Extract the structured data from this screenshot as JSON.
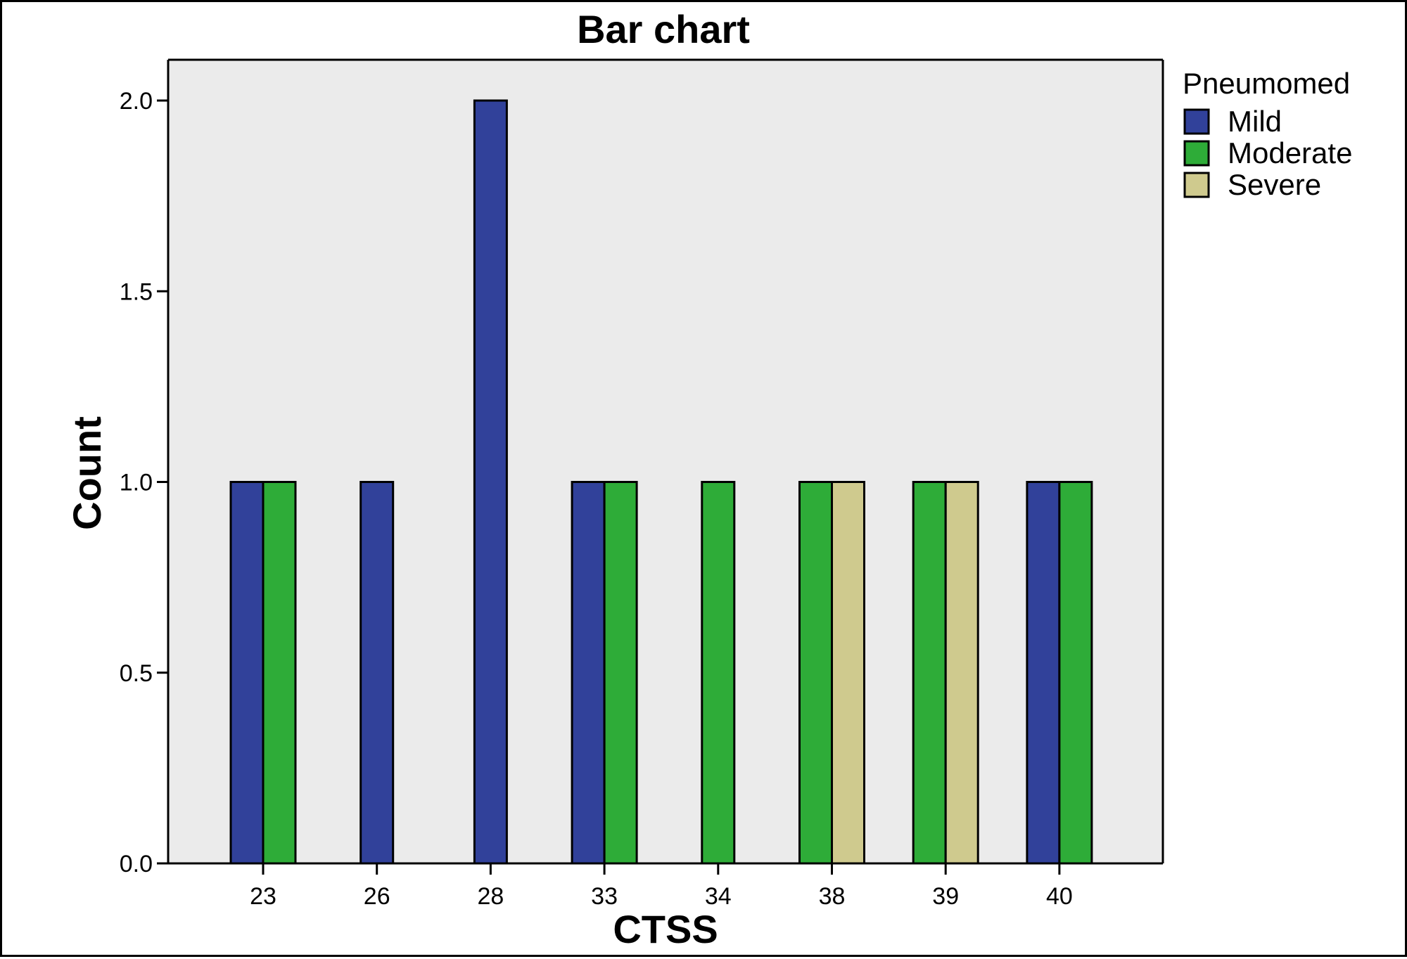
{
  "chart_data": {
    "type": "bar",
    "title": "Bar chart",
    "xlabel": "CTSS",
    "ylabel": "Count",
    "categories": [
      "23",
      "26",
      "28",
      "33",
      "34",
      "38",
      "39",
      "40"
    ],
    "series": [
      {
        "name": "Mild",
        "color": "#31419A",
        "values": [
          1,
          1,
          2,
          1,
          0,
          0,
          0,
          1
        ]
      },
      {
        "name": "Moderate",
        "color": "#2EAC38",
        "values": [
          1,
          0,
          0,
          1,
          1,
          1,
          1,
          1
        ]
      },
      {
        "name": "Severe",
        "color": "#CFCA8E",
        "values": [
          0,
          0,
          0,
          0,
          0,
          1,
          1,
          0
        ]
      }
    ],
    "ylim": [
      0,
      2.0
    ],
    "yticks": [
      "0.0",
      "0.5",
      "1.0",
      "1.5",
      "2.0"
    ],
    "legend": {
      "title": "Pneumomed",
      "placement": "right"
    },
    "plot_background": "#EBEBEB",
    "grid": false
  }
}
